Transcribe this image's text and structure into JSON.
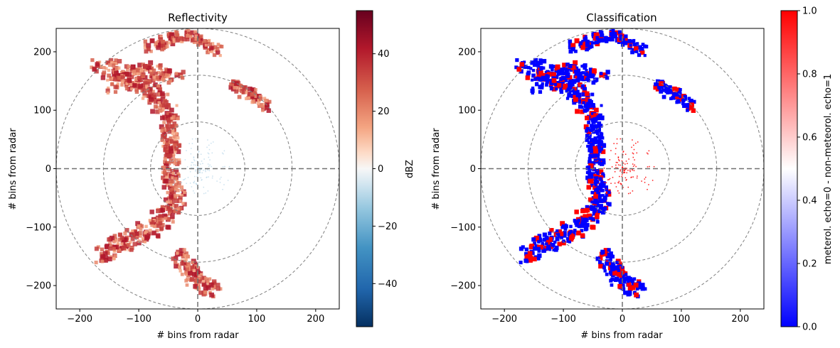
{
  "chart_data": [
    {
      "type": "heatmap",
      "title": "Reflectivity",
      "xlabel": "# bins from radar",
      "ylabel": "# bins from radar",
      "xlim": [
        -240,
        240
      ],
      "ylim": [
        -240,
        240
      ],
      "x_ticks": [
        -200,
        -100,
        0,
        100,
        200
      ],
      "y_ticks": [
        -200,
        -100,
        0,
        100,
        200
      ],
      "x_tick_labels": [
        "−200",
        "−100",
        "0",
        "100",
        "200"
      ],
      "y_tick_labels": [
        "−200",
        "−100",
        "0",
        "100",
        "200"
      ],
      "range_rings": [
        80,
        160,
        240
      ],
      "colorbar": {
        "label": "dBZ",
        "cmap": "RdBu_r",
        "range": [
          -55,
          55
        ],
        "ticks": [
          -40,
          -20,
          0,
          20,
          40
        ],
        "tick_labels": [
          "−40",
          "−20",
          "0",
          "20",
          "40"
        ]
      }
    },
    {
      "type": "heatmap",
      "title": "Classification",
      "xlabel": "# bins from radar",
      "ylabel": "# bins from radar",
      "xlim": [
        -240,
        240
      ],
      "ylim": [
        -240,
        240
      ],
      "x_ticks": [
        -200,
        -100,
        0,
        100,
        200
      ],
      "y_ticks": [
        -200,
        -100,
        0,
        100,
        200
      ],
      "x_tick_labels": [
        "−200",
        "−100",
        "0",
        "100",
        "200"
      ],
      "y_tick_labels": [
        "−200",
        "−100",
        "0",
        "100",
        "200"
      ],
      "range_rings": [
        80,
        160,
        240
      ],
      "colorbar": {
        "label": "meterol. echo=0 - non-meteorol. echo=1",
        "cmap": "bwr",
        "range": [
          0,
          1
        ],
        "ticks": [
          0,
          0.2,
          0.4,
          0.6,
          0.8,
          1
        ],
        "tick_labels": [
          "0.0",
          "0.2",
          "0.4",
          "0.6",
          "0.8",
          "1.0"
        ]
      }
    }
  ]
}
